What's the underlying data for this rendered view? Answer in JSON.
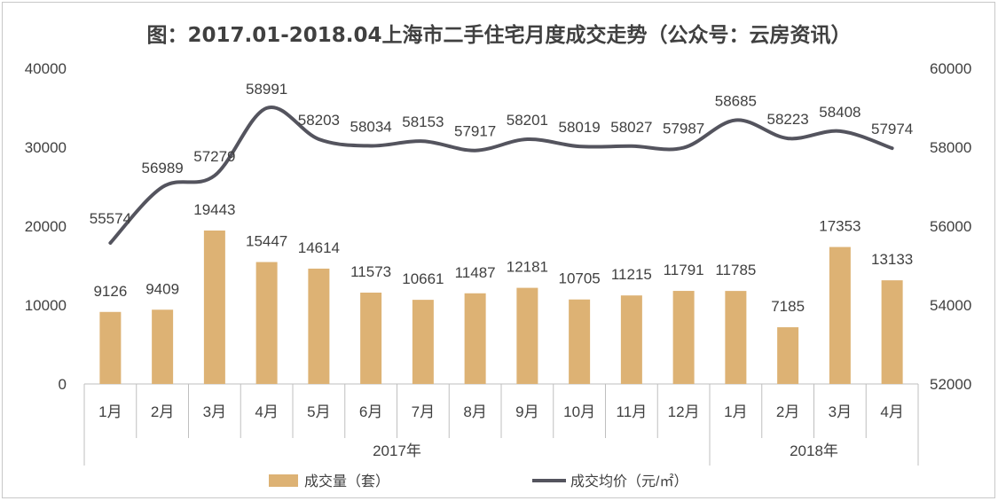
{
  "chart_data": {
    "type": "bar+line",
    "title": "图：2017.01-2018.04上海市二手住宅月度成交走势（公众号：云房资讯）",
    "categories": [
      "1月",
      "2月",
      "3月",
      "4月",
      "5月",
      "6月",
      "7月",
      "8月",
      "9月",
      "10月",
      "11月",
      "12月",
      "1月",
      "2月",
      "3月",
      "4月"
    ],
    "groups": [
      {
        "label": "2017年",
        "count": 12
      },
      {
        "label": "2018年",
        "count": 4
      }
    ],
    "series": [
      {
        "name": "成交量（套）",
        "type": "bar",
        "axis": "left",
        "color": "#DDB274",
        "values": [
          9126,
          9409,
          19443,
          15447,
          14614,
          11573,
          10661,
          11487,
          12181,
          10705,
          11215,
          11791,
          11785,
          7185,
          17353,
          13133
        ]
      },
      {
        "name": "成交均价（元/㎡）",
        "type": "line",
        "axis": "right",
        "color": "#54545E",
        "values": [
          55574,
          56989,
          57279,
          58991,
          58203,
          58034,
          58153,
          57917,
          58201,
          58019,
          58027,
          57987,
          58685,
          58223,
          58408,
          57974
        ]
      }
    ],
    "y_left": {
      "min": 0,
      "max": 40000,
      "ticks": [
        "0",
        "10000",
        "20000",
        "30000",
        "40000"
      ]
    },
    "y_right": {
      "min": 52000,
      "max": 60000,
      "ticks": [
        "52000",
        "54000",
        "56000",
        "58000",
        "60000"
      ]
    },
    "grid": false,
    "legend_position": "bottom"
  }
}
